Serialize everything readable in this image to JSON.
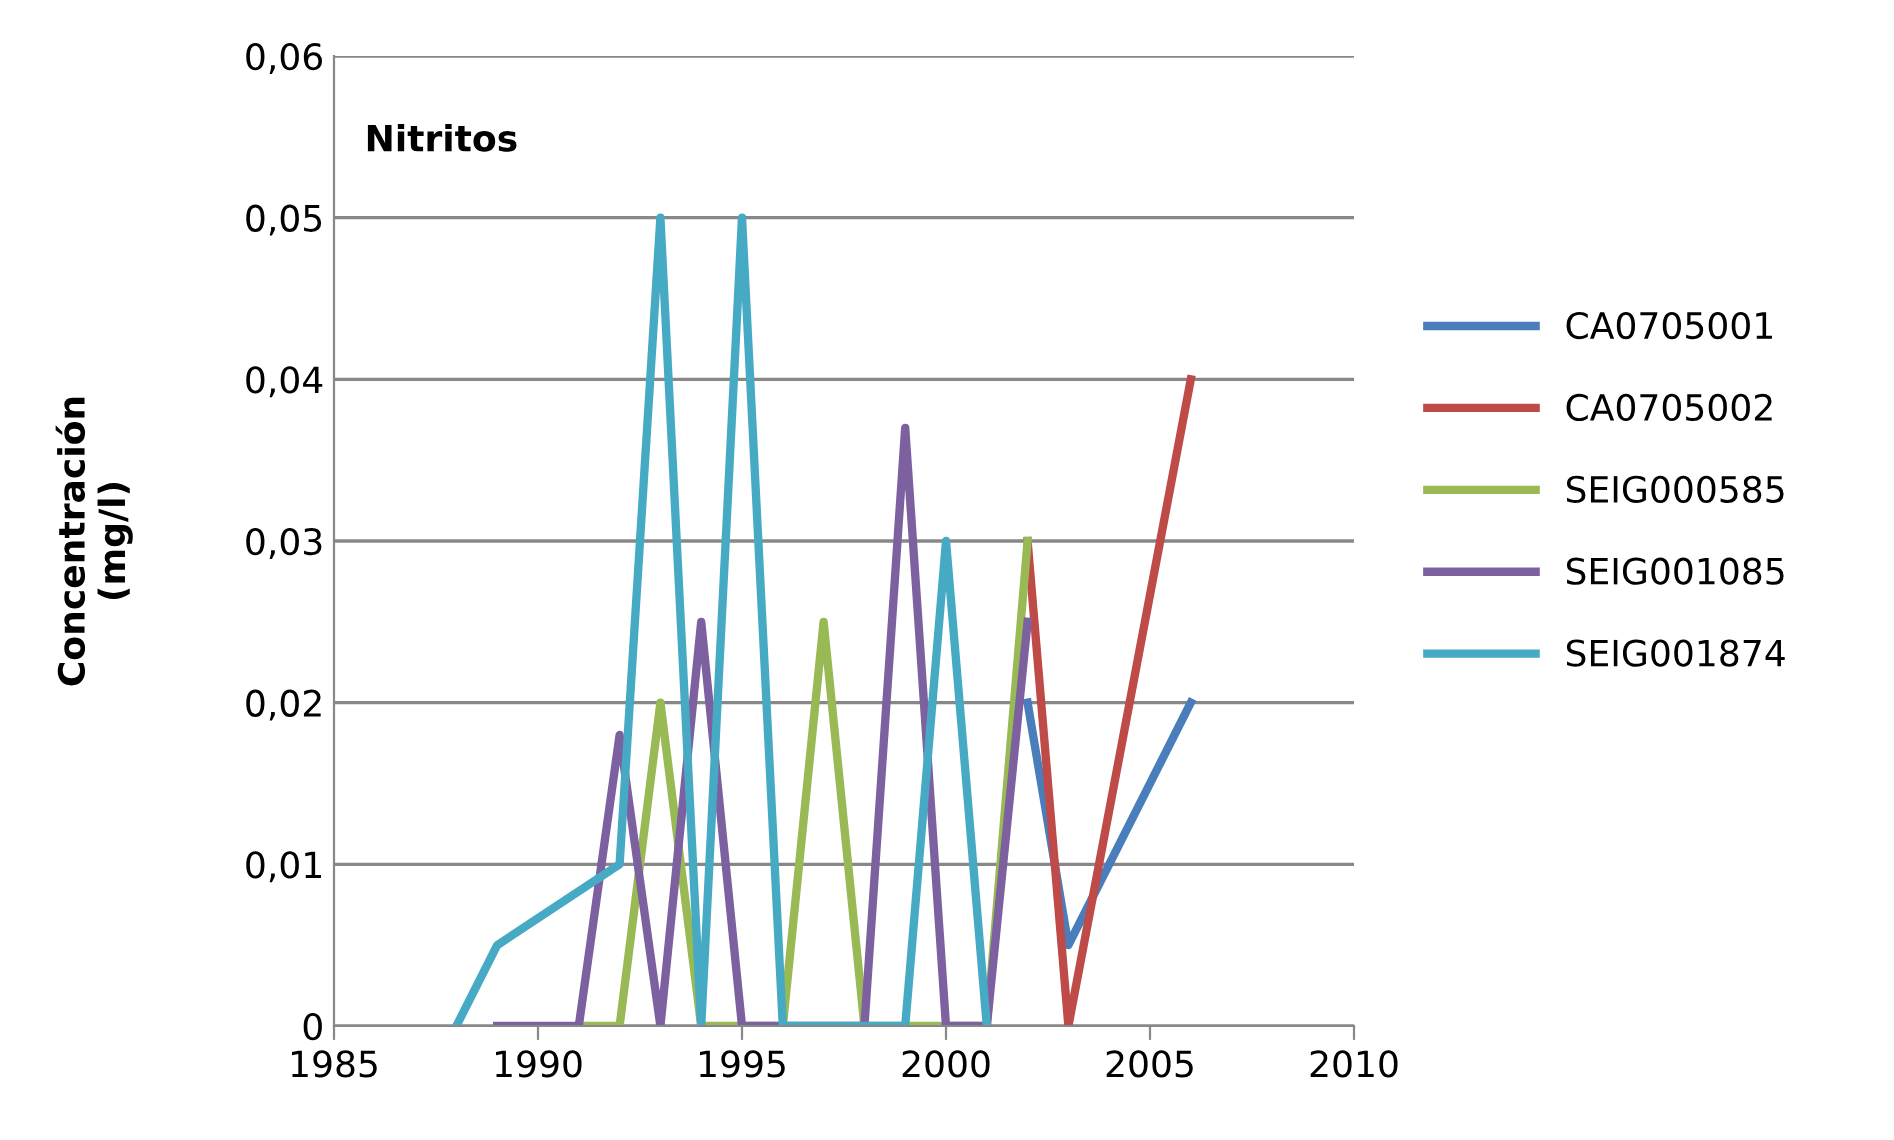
{
  "chart_data": {
    "type": "line",
    "title": "Nitritos",
    "ylabel": "Concentración\n(mg/l)",
    "series": [
      {
        "name": "CA0705001",
        "color": "#4a7ebb",
        "x": [
          2002,
          2003,
          2006
        ],
        "values": [
          0.02,
          0.005,
          0.02
        ]
      },
      {
        "name": "CA0705002",
        "color": "#be4b48",
        "x": [
          2002,
          2003,
          2006
        ],
        "values": [
          0.03,
          0,
          0.04
        ]
      },
      {
        "name": "SEIG000585",
        "color": "#98b954",
        "x": [
          1991,
          1992,
          1993,
          1994,
          1995,
          1996,
          1997,
          1998,
          1999,
          2000,
          2001,
          2002
        ],
        "values": [
          0,
          0,
          0.02,
          0,
          0,
          0,
          0.025,
          0,
          0,
          0,
          0,
          0.03
        ]
      },
      {
        "name": "SEIG001085",
        "color": "#7d60a0",
        "x": [
          1989,
          1990,
          1991,
          1992,
          1993,
          1994,
          1995,
          1996,
          1997,
          1998,
          1999,
          2000,
          2001,
          2002
        ],
        "values": [
          0,
          0,
          0,
          0.018,
          0,
          0.025,
          0,
          0,
          0,
          0,
          0.037,
          0,
          0,
          0.025
        ]
      },
      {
        "name": "SEIG001874",
        "color": "#46aac5",
        "x": [
          1988,
          1989,
          1992,
          1993,
          1994,
          1995,
          1996,
          1997,
          1998,
          1999,
          2000,
          2001
        ],
        "values": [
          0,
          0.005,
          0.01,
          0.05,
          0,
          0.05,
          0,
          0,
          0,
          0,
          0.03,
          0
        ]
      }
    ],
    "xlim": [
      1985,
      2010
    ],
    "xticks": [
      1985,
      1990,
      1995,
      2000,
      2005,
      2010
    ],
    "ylim": [
      0,
      0.06
    ],
    "yticks": [
      0,
      {
        "value": 0.01,
        "label": "0,01"
      },
      {
        "value": 0.02,
        "label": "0,02"
      },
      {
        "value": 0.03,
        "label": "0,03"
      },
      {
        "value": 0.04,
        "label": "0,04"
      },
      {
        "value": 0.05,
        "label": "0,05"
      },
      {
        "value": 0.06,
        "label": "0,06"
      }
    ],
    "grid": "y",
    "legend": "right",
    "marker": "none",
    "line_style": "solid"
  }
}
